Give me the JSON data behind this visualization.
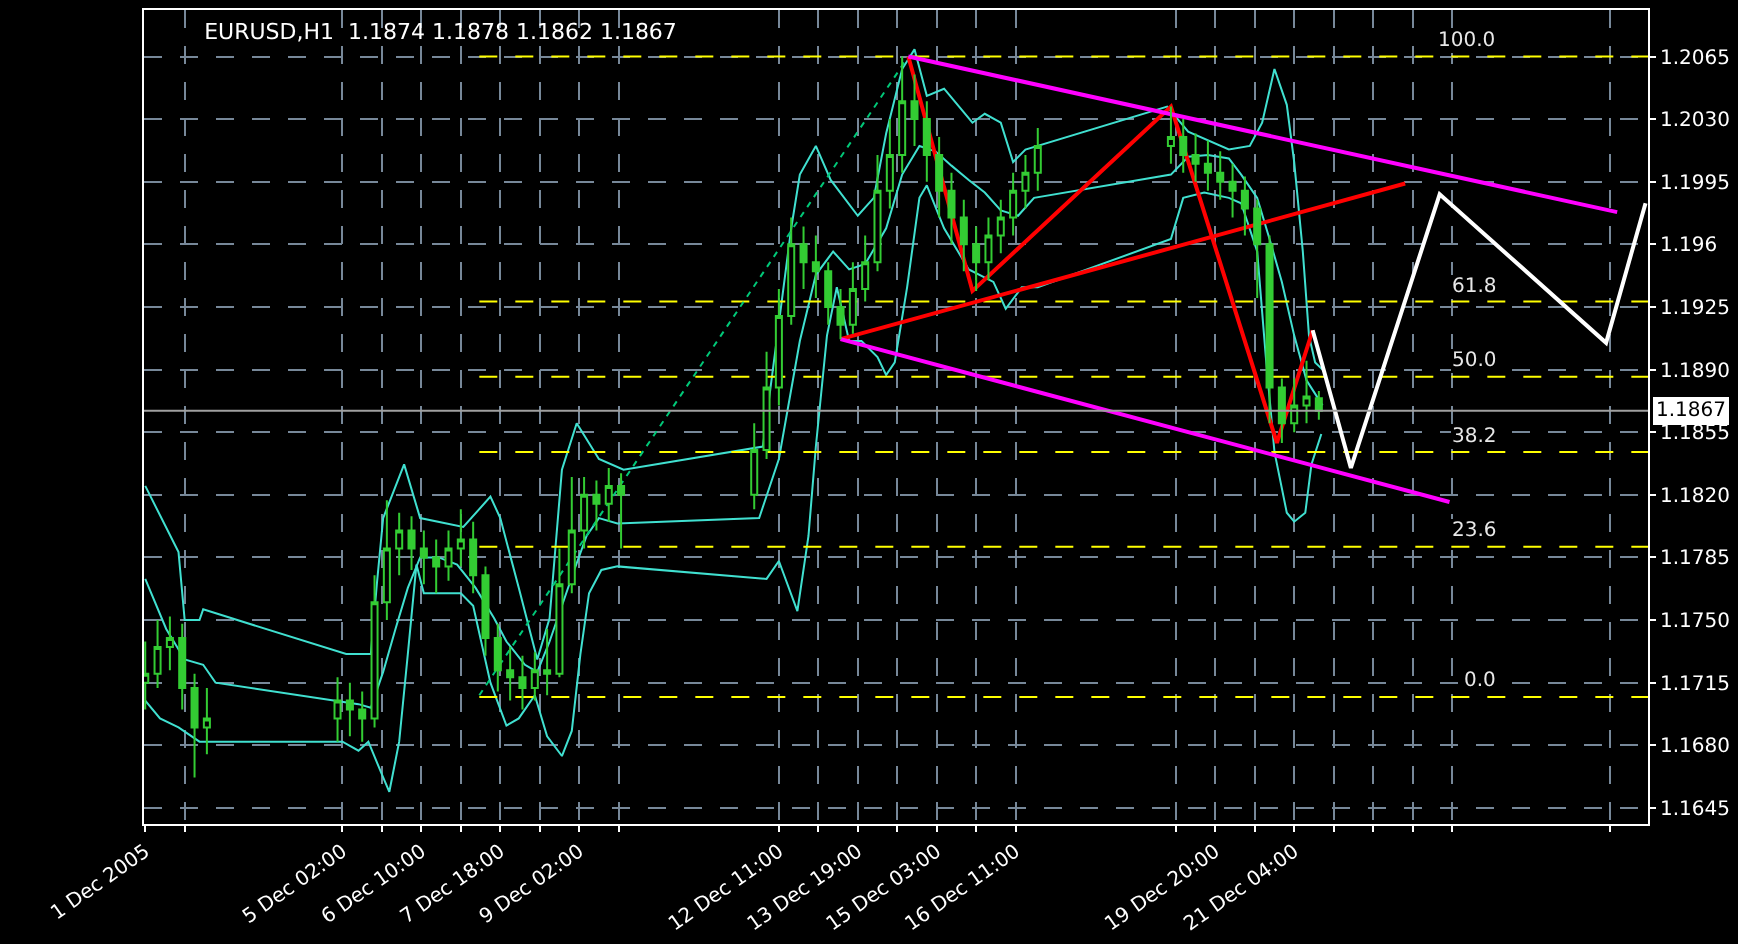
{
  "chart_data": {
    "type": "candlestick",
    "title": "EURUSD,H1  1.1874 1.1878 1.1862 1.1867",
    "color": "#33cc33",
    "x": [
      "2005-12-01T18:00",
      "2005-12-01T23:00",
      "2005-12-02T04:00",
      "2005-12-02T09:00",
      "2005-12-02T14:00",
      "2005-12-02T19:00",
      "2005-12-05T00:00",
      "2005-12-05T05:00",
      "2005-12-05T10:00",
      "2005-12-05T15:00",
      "2005-12-05T20:00",
      "2005-12-06T01:00",
      "2005-12-06T06:00",
      "2005-12-06T11:00",
      "2005-12-06T16:00",
      "2005-12-06T21:00",
      "2005-12-07T02:00",
      "2005-12-07T07:00",
      "2005-12-07T12:00",
      "2005-12-07T17:00",
      "2005-12-07T22:00",
      "2005-12-08T03:00",
      "2005-12-08T08:00",
      "2005-12-08T13:00",
      "2005-12-08T18:00",
      "2005-12-08T23:00",
      "2005-12-09T04:00",
      "2005-12-09T09:00",
      "2005-12-09T14:00",
      "2005-12-09T19:00",
      "2005-12-12T01:00",
      "2005-12-12T06:00",
      "2005-12-12T11:00",
      "2005-12-12T16:00",
      "2005-12-12T21:00",
      "2005-12-13T02:00",
      "2005-12-13T07:00",
      "2005-12-13T12:00",
      "2005-12-13T17:00",
      "2005-12-13T22:00",
      "2005-12-14T03:00",
      "2005-12-14T08:00",
      "2005-12-14T13:00",
      "2005-12-14T18:00",
      "2005-12-14T23:00",
      "2005-12-15T04:00",
      "2005-12-15T09:00",
      "2005-12-15T14:00",
      "2005-12-15T19:00",
      "2005-12-16T00:00",
      "2005-12-16T05:00",
      "2005-12-16T10:00",
      "2005-12-16T15:00",
      "2005-12-16T20:00",
      "2005-12-19T02:00",
      "2005-12-19T07:00",
      "2005-12-19T12:00",
      "2005-12-19T17:00",
      "2005-12-19T22:00",
      "2005-12-20T03:00",
      "2005-12-20T08:00",
      "2005-12-20T13:00",
      "2005-12-20T18:00",
      "2005-12-20T23:00",
      "2005-12-21T04:00",
      "2005-12-21T09:00",
      "2005-12-21T14:00"
    ],
    "ohlc": [
      [
        1.1715,
        1.1738,
        1.17,
        1.172
      ],
      [
        1.172,
        1.175,
        1.1712,
        1.1735
      ],
      [
        1.1735,
        1.1752,
        1.1722,
        1.174
      ],
      [
        1.174,
        1.1748,
        1.17,
        1.1712
      ],
      [
        1.1712,
        1.172,
        1.1662,
        1.169
      ],
      [
        1.169,
        1.1712,
        1.1675,
        1.1695
      ],
      [
        1.1695,
        1.1718,
        1.1682,
        1.1705
      ],
      [
        1.1705,
        1.1715,
        1.1685,
        1.17
      ],
      [
        1.17,
        1.171,
        1.1682,
        1.1695
      ],
      [
        1.1695,
        1.1775,
        1.169,
        1.176
      ],
      [
        1.176,
        1.1817,
        1.175,
        1.179
      ],
      [
        1.179,
        1.181,
        1.1775,
        1.18
      ],
      [
        1.18,
        1.1808,
        1.1778,
        1.179
      ],
      [
        1.179,
        1.18,
        1.177,
        1.1785
      ],
      [
        1.1785,
        1.1795,
        1.1765,
        1.178
      ],
      [
        1.178,
        1.18,
        1.1772,
        1.179
      ],
      [
        1.179,
        1.1812,
        1.178,
        1.1795
      ],
      [
        1.1795,
        1.1805,
        1.1765,
        1.1775
      ],
      [
        1.1775,
        1.178,
        1.173,
        1.174
      ],
      [
        1.174,
        1.1748,
        1.171,
        1.1722
      ],
      [
        1.1722,
        1.1735,
        1.1705,
        1.1718
      ],
      [
        1.1718,
        1.173,
        1.17,
        1.1712
      ],
      [
        1.1712,
        1.1732,
        1.1705,
        1.1722
      ],
      [
        1.1722,
        1.1745,
        1.1708,
        1.172
      ],
      [
        1.172,
        1.179,
        1.1718,
        1.177
      ],
      [
        1.177,
        1.183,
        1.1765,
        1.18
      ],
      [
        1.18,
        1.183,
        1.179,
        1.182
      ],
      [
        1.182,
        1.1828,
        1.18,
        1.1815
      ],
      [
        1.1815,
        1.1835,
        1.1805,
        1.1825
      ],
      [
        1.1825,
        1.1832,
        1.179,
        1.182
      ],
      [
        1.182,
        1.186,
        1.1812,
        1.1845
      ],
      [
        1.1845,
        1.19,
        1.184,
        1.188
      ],
      [
        1.188,
        1.1935,
        1.187,
        1.192
      ],
      [
        1.192,
        1.1975,
        1.1915,
        1.196
      ],
      [
        1.196,
        1.197,
        1.1935,
        1.195
      ],
      [
        1.195,
        1.1965,
        1.193,
        1.1945
      ],
      [
        1.1945,
        1.195,
        1.1915,
        1.1925
      ],
      [
        1.1925,
        1.1935,
        1.1907,
        1.1915
      ],
      [
        1.1915,
        1.195,
        1.191,
        1.1935
      ],
      [
        1.1935,
        1.1965,
        1.1928,
        1.195
      ],
      [
        1.195,
        1.201,
        1.1945,
        1.199
      ],
      [
        1.199,
        1.203,
        1.198,
        1.201
      ],
      [
        1.201,
        1.2065,
        1.2,
        1.204
      ],
      [
        1.204,
        1.2055,
        1.2015,
        1.203
      ],
      [
        1.203,
        1.204,
        1.1995,
        1.201
      ],
      [
        1.201,
        1.202,
        1.1975,
        1.199
      ],
      [
        1.199,
        1.2,
        1.196,
        1.1975
      ],
      [
        1.1975,
        1.1985,
        1.1945,
        1.196
      ],
      [
        1.196,
        1.197,
        1.1934,
        1.195
      ],
      [
        1.195,
        1.1975,
        1.194,
        1.1965
      ],
      [
        1.1965,
        1.1985,
        1.1955,
        1.1975
      ],
      [
        1.1975,
        1.2,
        1.1965,
        1.199
      ],
      [
        1.199,
        1.201,
        1.198,
        1.2
      ],
      [
        1.2,
        1.2025,
        1.199,
        1.2015
      ],
      [
        1.2015,
        1.2037,
        1.2005,
        1.202
      ],
      [
        1.202,
        1.203,
        1.2,
        1.201
      ],
      [
        1.201,
        1.2022,
        1.1995,
        1.2005
      ],
      [
        1.2005,
        1.2018,
        1.199,
        1.2
      ],
      [
        1.2,
        1.2012,
        1.1985,
        1.1995
      ],
      [
        1.1995,
        1.2005,
        1.1975,
        1.199
      ],
      [
        1.199,
        1.1998,
        1.1965,
        1.198
      ],
      [
        1.198,
        1.1985,
        1.193,
        1.196
      ],
      [
        1.196,
        1.1965,
        1.186,
        1.188
      ],
      [
        1.188,
        1.1885,
        1.1849,
        1.186
      ],
      [
        1.186,
        1.1885,
        1.1855,
        1.187
      ],
      [
        1.187,
        1.1895,
        1.186,
        1.1875
      ],
      [
        1.1874,
        1.1878,
        1.1862,
        1.1867
      ]
    ],
    "series": [
      {
        "type": "line",
        "color": "#40e0d0",
        "x": [
          "2005-12-01T18:00",
          "2005-12-02T07:30",
          "2005-12-02T10:00",
          "2005-12-02T16:00",
          "2005-12-02T17:30",
          "2005-12-05T03:30",
          "2005-12-05T13:30",
          "2005-12-05T16:00",
          "2005-12-05T18:30",
          "2005-12-06T03:00",
          "2005-12-06T09:30",
          "2005-12-07T03:00",
          "2005-12-07T14:00",
          "2005-12-07T18:00",
          "2005-12-08T01:30",
          "2005-12-08T09:00",
          "2005-12-08T14:00",
          "2005-12-08T19:00",
          "2005-12-09T01:00",
          "2005-12-09T10:00",
          "2005-12-09T20:00",
          "2005-12-12T04:30",
          "2005-12-12T11:00",
          "2005-12-12T16:00",
          "2005-12-12T19:30",
          "2005-12-13T02:00",
          "2005-12-13T08:00",
          "2005-12-13T19:00",
          "2005-12-14T01:30",
          "2005-12-14T06:30",
          "2005-12-14T13:00",
          "2005-12-14T18:00",
          "2005-12-14T23:00",
          "2005-12-15T06:00",
          "2005-12-15T17:30",
          "2005-12-15T22:30",
          "2005-12-16T05:00",
          "2005-12-16T10:00",
          "2005-12-16T15:00",
          "2005-12-19T00:30",
          "2005-12-19T09:00",
          "2005-12-20T01:30",
          "2005-12-20T10:00",
          "2005-12-20T15:00",
          "2005-12-20T20:00",
          "2005-12-21T01:00",
          "2005-12-21T04:00",
          "2005-12-21T07:30",
          "2005-12-21T10:00",
          "2005-12-21T12:30",
          "2005-12-21T15:30"
        ],
        "values": [
          1.1825,
          1.1788,
          1.175,
          1.175,
          1.1756,
          1.1731,
          1.1731,
          1.1771,
          1.1807,
          1.1837,
          1.1807,
          1.1802,
          1.1819,
          1.1807,
          1.1768,
          1.1728,
          1.1751,
          1.1834,
          1.186,
          1.184,
          1.1834,
          1.1847,
          null,
          1.1969,
          1.1999,
          1.2015,
          1.1996,
          1.1976,
          1.1986,
          1.2022,
          1.2058,
          1.2069,
          1.2043,
          1.2047,
          1.2028,
          1.2033,
          1.2028,
          1.2006,
          1.2013,
          1.2037,
          1.2023,
          1.2013,
          1.2015,
          1.2028,
          1.2058,
          1.2038,
          1.2006,
          1.1956,
          1.1909,
          1.1894,
          1.189
        ]
      },
      {
        "type": "line",
        "color": "#40e0d0",
        "x": [
          "2005-12-01T18:00",
          "2005-12-02T02:30",
          "2005-12-02T10:00",
          "2005-12-02T17:30",
          "2005-12-02T22:30",
          "2005-12-05T08:30",
          "2005-12-05T13:30",
          "2005-12-05T18:30",
          "2005-12-05T23:30",
          "2005-12-06T04:30",
          "2005-12-06T09:30",
          "2005-12-06T17:00",
          "2005-12-07T00:30",
          "2005-12-07T08:00",
          "2005-12-07T15:30",
          "2005-12-07T20:30",
          "2005-12-08T04:00",
          "2005-12-08T09:00",
          "2005-12-08T14:00",
          "2005-12-08T19:00",
          "2005-12-09T00:00",
          "2005-12-09T05:00",
          "2005-12-09T10:00",
          "2005-12-09T17:30",
          "2005-12-12T03:00",
          "2005-12-12T11:00",
          "2005-12-12T19:30",
          "2005-12-13T02:00",
          "2005-12-13T09:00",
          "2005-12-13T15:30",
          "2005-12-13T22:00",
          "2005-12-14T06:30",
          "2005-12-14T13:00",
          "2005-12-14T20:00",
          "2005-12-15T02:30",
          "2005-12-15T09:00",
          "2005-12-15T16:00",
          "2005-12-15T22:30",
          "2005-12-16T05:00",
          "2005-12-16T12:00",
          "2005-12-16T18:30",
          "2005-12-19T02:00",
          "2005-12-19T09:00",
          "2005-12-19T17:00",
          "2005-12-20T01:30",
          "2005-12-20T06:30",
          "2005-12-20T13:00",
          "2005-12-20T18:00",
          "2005-12-20T23:00",
          "2005-12-21T04:00",
          "2005-12-21T09:00",
          "2005-12-21T15:30"
        ],
        "values": [
          1.1773,
          1.1745,
          1.1728,
          1.1725,
          1.1715,
          1.1703,
          1.1701,
          1.1721,
          1.1745,
          1.1768,
          1.1785,
          1.1785,
          1.1781,
          1.1768,
          1.1751,
          1.1738,
          1.1725,
          1.1721,
          1.1738,
          1.1758,
          1.1778,
          1.1797,
          1.1807,
          1.1804,
          1.1807,
          1.184,
          1.1906,
          1.1943,
          1.1956,
          1.1946,
          1.1949,
          1.1969,
          1.1999,
          1.2015,
          1.2012,
          1.2004,
          1.1996,
          1.1989,
          1.1979,
          1.1976,
          1.1986,
          1.1999,
          1.2009,
          1.201,
          1.2008,
          1.1999,
          1.1986,
          1.1963,
          1.1939,
          1.1909,
          1.1884,
          1.187
        ]
      },
      {
        "type": "line",
        "color": "#40e0d0",
        "x": [
          "2005-12-01T18:00",
          "2005-12-02T00:00",
          "2005-12-02T07:30",
          "2005-12-02T16:00",
          "2005-12-05T02:00",
          "2005-12-05T08:30",
          "2005-12-05T12:30",
          "2005-12-05T18:30",
          "2005-12-05T21:00",
          "2005-12-06T01:00",
          "2005-12-06T04:30",
          "2005-12-06T08:00",
          "2005-12-06T11:00",
          "2005-12-07T02:00",
          "2005-12-07T07:00",
          "2005-12-07T14:00",
          "2005-12-07T20:30",
          "2005-12-08T01:30",
          "2005-12-08T08:00",
          "2005-12-08T13:00",
          "2005-12-08T19:00",
          "2005-12-08T23:00",
          "2005-12-09T02:30",
          "2005-12-09T06:00",
          "2005-12-09T11:00",
          "2005-12-09T17:30",
          "2005-12-12T06:00",
          "2005-12-12T11:00",
          "2005-12-12T18:30",
          "2005-12-12T23:00",
          "2005-12-13T02:00",
          "2005-12-13T06:30",
          "2005-12-13T10:30",
          "2005-12-13T15:30",
          "2005-12-13T20:30",
          "2005-12-14T03:00",
          "2005-12-14T06:30",
          "2005-12-14T10:00",
          "2005-12-14T15:00",
          "2005-12-14T20:00",
          "2005-12-14T23:00",
          "2005-12-15T06:00",
          "2005-12-15T16:00",
          "2005-12-16T02:00",
          "2005-12-16T07:00",
          "2005-12-16T13:30",
          "2005-12-16T20:00",
          "2005-12-19T02:00",
          "2005-12-19T07:00",
          "2005-12-19T15:30",
          "2005-12-20T01:30",
          "2005-12-20T06:30",
          "2005-12-20T13:00",
          "2005-12-20T16:30",
          "2005-12-20T20:00",
          "2005-12-21T01:00",
          "2005-12-21T04:00",
          "2005-12-21T08:30",
          "2005-12-21T11:00",
          "2005-12-21T15:00"
        ],
        "values": [
          1.1705,
          1.1695,
          1.169,
          1.1682,
          1.1682,
          1.1677,
          1.1682,
          1.1662,
          1.1654,
          1.1682,
          1.1731,
          1.1781,
          1.1765,
          1.1765,
          1.1758,
          1.1715,
          1.1691,
          1.1695,
          1.1708,
          1.1685,
          1.1674,
          1.1688,
          1.1731,
          1.1765,
          1.1778,
          1.178,
          1.1773,
          1.1783,
          1.1755,
          1.1797,
          1.1847,
          1.1909,
          1.1936,
          1.1906,
          1.1906,
          1.1897,
          1.1887,
          1.1894,
          1.1936,
          1.1986,
          1.1993,
          1.1969,
          1.1946,
          1.1939,
          1.1924,
          1.1936,
          1.1936,
          1.1963,
          1.1986,
          1.1989,
          1.1986,
          1.1983,
          1.1956,
          1.1897,
          1.1844,
          1.181,
          1.1805,
          1.181,
          1.1837,
          1.1854
        ]
      },
      {
        "type": "line",
        "color": "#ffff00",
        "line_style": "dashed",
        "name": "100.0",
        "x": [
          "2005-12-07T09:30",
          "2005-12-27T03:30"
        ],
        "values": [
          1.2065,
          1.2065
        ]
      },
      {
        "type": "line",
        "color": "#ffff00",
        "line_style": "dashed",
        "name": "61.8",
        "x": [
          "2005-12-07T09:30",
          "2005-12-27T03:30"
        ],
        "values": [
          1.1928,
          1.1928
        ]
      },
      {
        "type": "line",
        "color": "#ffff00",
        "line_style": "dashed",
        "name": "50.0",
        "x": [
          "2005-12-07T09:30",
          "2005-12-27T03:30"
        ],
        "values": [
          1.1886,
          1.1886
        ]
      },
      {
        "type": "line",
        "color": "#ffff00",
        "line_style": "dashed",
        "name": "38.2",
        "x": [
          "2005-12-07T09:30",
          "2005-12-27T03:30"
        ],
        "values": [
          1.1844,
          1.1844
        ]
      },
      {
        "type": "line",
        "color": "#ffff00",
        "line_style": "dashed",
        "name": "23.6",
        "x": [
          "2005-12-07T09:30",
          "2005-12-27T03:30"
        ],
        "values": [
          1.1791,
          1.1791
        ]
      },
      {
        "type": "line",
        "color": "#ffff00",
        "line_style": "dashed",
        "name": "0.0",
        "x": [
          "2005-12-07T09:30",
          "2005-12-27T03:30"
        ],
        "values": [
          1.1707,
          1.1707
        ]
      },
      {
        "type": "line",
        "color": "#00c878",
        "line_style": "dotted",
        "x": [
          "2005-12-07T09:30",
          "2005-12-14T15:30"
        ],
        "values": [
          1.1708,
          1.2065
        ]
      },
      {
        "type": "line",
        "color": "#ff0000",
        "x": [
          "2005-12-14T15:30",
          "2005-12-15T17:30",
          "2005-12-19T02:00",
          "2005-12-20T21:00",
          "2005-12-21T11:30"
        ],
        "values": [
          1.2065,
          1.1934,
          1.2037,
          1.1849,
          1.1912
        ]
      },
      {
        "type": "line",
        "color": "#ff0000",
        "x": [
          "2005-12-13T12:00",
          "2005-12-23T01:00"
        ],
        "values": [
          1.1907,
          1.1994
        ]
      },
      {
        "type": "line",
        "color": "#ff00ff",
        "x": [
          "2005-12-14T15:30",
          "2005-12-26T15:00"
        ],
        "values": [
          1.2065,
          1.1978
        ]
      },
      {
        "type": "line",
        "color": "#ff00ff",
        "x": [
          "2005-12-13T12:00",
          "2005-12-23T19:00"
        ],
        "values": [
          1.1907,
          1.1816
        ]
      },
      {
        "type": "line",
        "color": "#ffffff",
        "x": [
          "2005-12-21T11:30",
          "2005-12-22T03:00",
          "2005-12-23T15:00",
          "2005-12-26T10:30",
          "2005-12-27T02:30"
        ],
        "values": [
          1.1912,
          1.1835,
          1.1988,
          1.1905,
          1.1983
        ]
      }
    ],
    "ref_lines": [
      {
        "axis": "y",
        "value": 1.1867,
        "label": "1.1867",
        "color": "#a0a0a0",
        "line_style": "solid"
      }
    ],
    "xlim": [
      "2005-12-01T17:30",
      "2005-12-27T03:30"
    ],
    "xticks": [
      {
        "value": "2005-12-01T18:00",
        "label": "1 Dec 2005"
      },
      {
        "value": "2005-12-02T10:00",
        "label": null
      },
      {
        "value": "2005-12-05T02:00",
        "label": "5 Dec 02:00"
      },
      {
        "value": "2005-12-05T18:00",
        "label": null
      },
      {
        "value": "2005-12-06T10:00",
        "label": "6 Dec 10:00"
      },
      {
        "value": "2005-12-07T02:00",
        "label": null
      },
      {
        "value": "2005-12-07T18:00",
        "label": "7 Dec 18:00"
      },
      {
        "value": "2005-12-08T10:00",
        "label": null
      },
      {
        "value": "2005-12-09T02:00",
        "label": "9 Dec 02:00"
      },
      {
        "value": "2005-12-09T18:00",
        "label": null
      },
      {
        "value": "2005-12-12T11:00",
        "label": "12 Dec 11:00"
      },
      {
        "value": "2005-12-13T03:00",
        "label": null
      },
      {
        "value": "2005-12-13T19:00",
        "label": "13 Dec 19:00"
      },
      {
        "value": "2005-12-14T11:00",
        "label": null
      },
      {
        "value": "2005-12-15T03:00",
        "label": "15 Dec 03:00"
      },
      {
        "value": "2005-12-15T19:00",
        "label": null
      },
      {
        "value": "2005-12-16T11:00",
        "label": "16 Dec 11:00"
      },
      {
        "value": "2005-12-19T04:00",
        "label": null
      },
      {
        "value": "2005-12-19T20:00",
        "label": "19 Dec 20:00"
      },
      {
        "value": "2005-12-20T12:00",
        "label": null
      },
      {
        "value": "2005-12-21T04:00",
        "label": "21 Dec 04:00"
      },
      {
        "value": "2005-12-21T20:00",
        "label": null
      },
      {
        "value": "2005-12-22T12:00",
        "label": null
      },
      {
        "value": "2005-12-23T04:00",
        "label": null
      },
      {
        "value": "2005-12-23T20:00",
        "label": null
      },
      {
        "value": "2005-12-26T12:00",
        "label": null
      }
    ],
    "ylim": [
      1.1636,
      1.2091
    ],
    "yticks": [
      1.2065,
      {
        "value": 1.203,
        "label": "1.2030"
      },
      1.1995,
      1.196,
      1.1925,
      {
        "value": 1.189,
        "label": "1.1890"
      },
      1.1855,
      {
        "value": 1.182,
        "label": "1.1820"
      },
      1.1785,
      {
        "value": 1.175,
        "label": "1.1750"
      },
      1.1715,
      {
        "value": 1.168,
        "label": "1.1680"
      },
      1.1645
    ],
    "grid": true
  }
}
